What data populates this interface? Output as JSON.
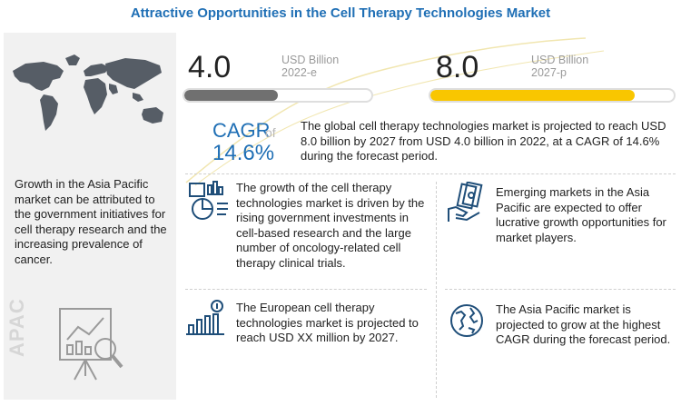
{
  "title": "Attractive Opportunities in the Cell Therapy Technologies Market",
  "region_label": "APAC",
  "sidebar_text": "Growth in the Asia Pacific market can be attributed to the government initiatives for cell therapy research and the increasing prevalence of cancer.",
  "metrics": [
    {
      "value": "4.0",
      "unit": "USD Billion",
      "year": "2022-e",
      "fill_fraction": 0.5,
      "color": "#707070"
    },
    {
      "value": "8.0",
      "unit": "USD Billion",
      "year": "2027-p",
      "fill_fraction": 0.84,
      "color": "#f9c600"
    }
  ],
  "cagr": {
    "label": "CAGR",
    "of": "of",
    "value": "14.6%"
  },
  "summary": "The global cell therapy technologies market is projected to reach USD 8.0 billion by 2027 from USD 4.0 billion in 2022, at a CAGR of 14.6% during the forecast period.",
  "points": [
    {
      "icon": "research-analysis-icon",
      "text": "The growth of the cell therapy technologies market is driven by the rising government investments in cell-based research and the large number of oncology-related cell therapy clinical trials."
    },
    {
      "icon": "money-hand-icon",
      "text": "Emerging markets in the Asia Pacific are expected to offer lucrative growth opportunities for market players."
    },
    {
      "icon": "growth-chart-icon",
      "text": "The European cell therapy technologies market is projected to reach USD XX million by 2027."
    },
    {
      "icon": "globe-icon",
      "text": "The Asia Pacific market is projected to grow at the highest CAGR during the forecast period."
    }
  ],
  "colors": {
    "accent": "#1f6fb5",
    "gold": "#f9c600",
    "gray": "#707070",
    "icon": "#1f4e79"
  }
}
